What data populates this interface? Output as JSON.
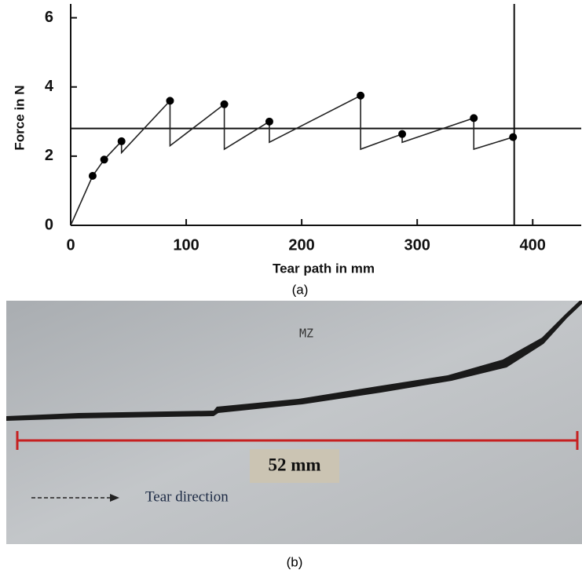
{
  "chart_data": {
    "type": "line",
    "x_label": "Tear path in mm",
    "y_label": "Force in N",
    "caption": "(a)",
    "xlim": [
      0,
      442
    ],
    "ylim": [
      0,
      6.4
    ],
    "xticks": [
      0,
      100,
      200,
      300,
      400
    ],
    "yticks": [
      0,
      2,
      4,
      6
    ],
    "series": [
      {
        "color": "#222222",
        "x": [
          0,
          19,
          29,
          44,
          44,
          86,
          86,
          133,
          133,
          172,
          172,
          251,
          251,
          287,
          287,
          349,
          349,
          383
        ],
        "values": [
          0,
          1.43,
          1.9,
          2.43,
          2.1,
          3.6,
          2.3,
          3.5,
          2.2,
          3.0,
          2.4,
          3.75,
          2.2,
          2.64,
          2.4,
          3.1,
          2.2,
          2.55
        ]
      },
      {
        "type": "scatter",
        "color": "#000000",
        "x": [
          19,
          29,
          44,
          86,
          133,
          172,
          251,
          287,
          349,
          383
        ],
        "values": [
          1.43,
          1.9,
          2.43,
          3.6,
          3.5,
          3.0,
          3.75,
          2.64,
          3.1,
          2.55
        ]
      }
    ],
    "hline": 2.8,
    "vline": 384
  },
  "photo": {
    "label": "MZ",
    "scale_label": "52 mm",
    "direction_label": "Tear direction",
    "caption": "(b)"
  }
}
